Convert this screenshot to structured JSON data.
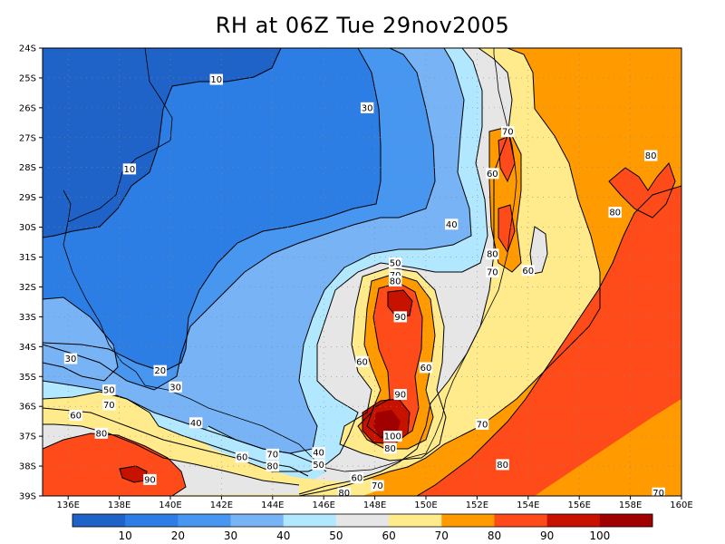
{
  "chart_data": {
    "type": "heatmap",
    "title": "RH at 06Z Tue 29nov2005",
    "xlabel": "",
    "ylabel": "",
    "x_ticks": [
      "136E",
      "138E",
      "140E",
      "142E",
      "144E",
      "146E",
      "148E",
      "150E",
      "152E",
      "154E",
      "156E",
      "158E",
      "160E"
    ],
    "y_ticks": [
      "24S",
      "25S",
      "26S",
      "27S",
      "28S",
      "29S",
      "30S",
      "31S",
      "32S",
      "33S",
      "34S",
      "35S",
      "36S",
      "37S",
      "38S",
      "39S"
    ],
    "xlim": [
      135,
      160
    ],
    "ylim": [
      -39,
      -24
    ],
    "grid": true,
    "levels": [
      10,
      20,
      30,
      40,
      50,
      60,
      70,
      80,
      90,
      100
    ],
    "colorbar_labels": [
      "10",
      "20",
      "30",
      "40",
      "50",
      "60",
      "70",
      "80",
      "90",
      "100"
    ],
    "colorbar_colors": [
      "#1f62c8",
      "#2c7ee4",
      "#4796f0",
      "#78b4f5",
      "#b2e8ff",
      "#e6e6e6",
      "#ffea8c",
      "#ff9b00",
      "#ff4a1a",
      "#c81200",
      "#a00000"
    ],
    "contour_labels": [
      {
        "text": "10",
        "lon": 141.8,
        "lat": -25.05
      },
      {
        "text": "10",
        "lon": 138.4,
        "lat": -28.05
      },
      {
        "text": "30",
        "lon": 147.7,
        "lat": -26.0
      },
      {
        "text": "70",
        "lon": 153.2,
        "lat": -26.8
      },
      {
        "text": "80",
        "lon": 158.8,
        "lat": -27.6
      },
      {
        "text": "60",
        "lon": 152.6,
        "lat": -28.2
      },
      {
        "text": "80",
        "lon": 157.4,
        "lat": -29.5
      },
      {
        "text": "40",
        "lon": 151.0,
        "lat": -29.9
      },
      {
        "text": "80",
        "lon": 152.6,
        "lat": -30.9
      },
      {
        "text": "60",
        "lon": 154.0,
        "lat": -31.45
      },
      {
        "text": "70",
        "lon": 152.6,
        "lat": -31.5
      },
      {
        "text": "50",
        "lon": 148.8,
        "lat": -31.2
      },
      {
        "text": "70",
        "lon": 148.8,
        "lat": -31.6
      },
      {
        "text": "80",
        "lon": 148.8,
        "lat": -31.8
      },
      {
        "text": "90",
        "lon": 149.0,
        "lat": -33.0
      },
      {
        "text": "60",
        "lon": 147.5,
        "lat": -34.5
      },
      {
        "text": "60",
        "lon": 150.0,
        "lat": -34.7
      },
      {
        "text": "30",
        "lon": 136.1,
        "lat": -34.4
      },
      {
        "text": "20",
        "lon": 139.6,
        "lat": -34.8
      },
      {
        "text": "30",
        "lon": 140.2,
        "lat": -35.35
      },
      {
        "text": "50",
        "lon": 137.6,
        "lat": -35.45
      },
      {
        "text": "70",
        "lon": 137.6,
        "lat": -35.95
      },
      {
        "text": "60",
        "lon": 136.3,
        "lat": -36.3
      },
      {
        "text": "40",
        "lon": 141.0,
        "lat": -36.55
      },
      {
        "text": "90",
        "lon": 149.0,
        "lat": -35.6
      },
      {
        "text": "70",
        "lon": 152.2,
        "lat": -36.6
      },
      {
        "text": "80",
        "lon": 137.3,
        "lat": -36.9
      },
      {
        "text": "100",
        "lon": 148.7,
        "lat": -37.0
      },
      {
        "text": "80",
        "lon": 148.6,
        "lat": -37.4
      },
      {
        "text": "40",
        "lon": 145.8,
        "lat": -37.55
      },
      {
        "text": "60",
        "lon": 142.8,
        "lat": -37.7
      },
      {
        "text": "70",
        "lon": 144.0,
        "lat": -37.6
      },
      {
        "text": "80",
        "lon": 144.0,
        "lat": -38.0
      },
      {
        "text": "50",
        "lon": 145.8,
        "lat": -37.95
      },
      {
        "text": "80",
        "lon": 153.0,
        "lat": -37.95
      },
      {
        "text": "90",
        "lon": 139.2,
        "lat": -38.45
      },
      {
        "text": "60",
        "lon": 147.3,
        "lat": -38.4
      },
      {
        "text": "70",
        "lon": 148.1,
        "lat": -38.65
      },
      {
        "text": "80",
        "lon": 146.8,
        "lat": -38.9
      },
      {
        "text": "70",
        "lon": 159.1,
        "lat": -38.9
      }
    ]
  }
}
